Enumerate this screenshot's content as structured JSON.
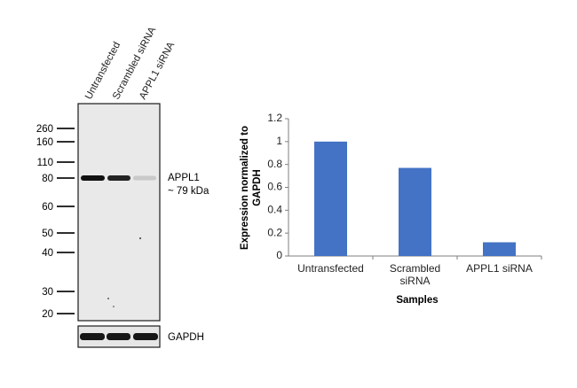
{
  "blot": {
    "lanes": [
      "Untransfected",
      "Scrambled siRNA",
      "APPL1 siRNA"
    ],
    "markers": [
      "260",
      "160",
      "110",
      "80",
      "60",
      "50",
      "40",
      "30",
      "20"
    ],
    "marker_values": [
      260,
      160,
      110,
      80,
      60,
      50,
      40,
      30,
      20
    ],
    "target_label": "APPL1",
    "target_size": "~ 79 kDa",
    "loading_label": "GAPDH",
    "band_intensity": [
      1.0,
      0.92,
      0.12
    ]
  },
  "chart_data": {
    "type": "bar",
    "categories": [
      "Untransfected",
      "Scrambled siRNA",
      "APPL1 siRNA"
    ],
    "category_lines": [
      [
        "Untransfected"
      ],
      [
        "Scrambled",
        "siRNA"
      ],
      [
        "APPL1 siRNA"
      ]
    ],
    "values": [
      1.0,
      0.77,
      0.12
    ],
    "xlabel": "Samples",
    "ylabel_lines": [
      "Expression  normalized to",
      "GAPDH"
    ],
    "yticks": [
      "0",
      "0.2",
      "0.4",
      "0.6",
      "0.8",
      "1",
      "1.2"
    ],
    "ylim": [
      0,
      1.2
    ],
    "bar_color": "#4472C4",
    "grid": false
  }
}
